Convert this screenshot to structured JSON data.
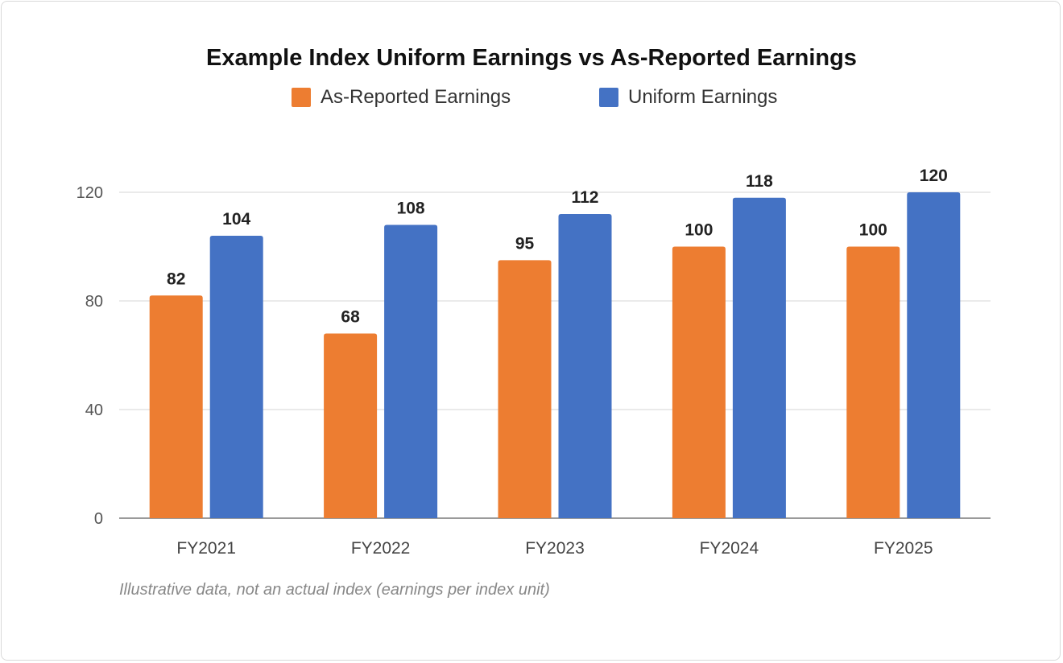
{
  "chart_data": {
    "type": "bar",
    "title": "Example Index Uniform Earnings vs As-Reported Earnings",
    "categories": [
      "FY2021",
      "FY2022",
      "FY2023",
      "FY2024",
      "FY2025"
    ],
    "series": [
      {
        "name": "As-Reported Earnings",
        "color": "#ed7d31",
        "values": [
          82,
          68,
          95,
          100,
          100
        ]
      },
      {
        "name": "Uniform Earnings",
        "color": "#4472c4",
        "values": [
          104,
          108,
          112,
          118,
          120
        ]
      }
    ],
    "yticks": [
      "0",
      "40",
      "80",
      "120"
    ],
    "ylim": [
      0,
      120
    ],
    "grid": true,
    "legend_position": "top-center",
    "note": "Illustrative data, not an actual index (earnings per index unit)"
  }
}
